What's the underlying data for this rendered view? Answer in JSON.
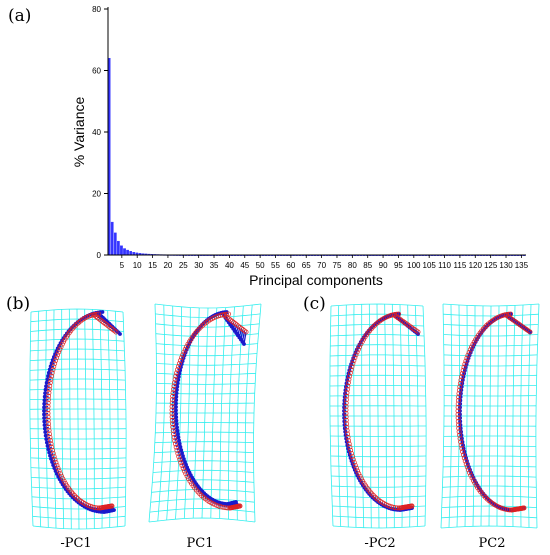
{
  "panel_labels": {
    "a": "(a)",
    "b": "(b)",
    "c": "(c)"
  },
  "captions": [
    "-PC1",
    "PC1",
    "-PC2",
    "PC2"
  ],
  "colors": {
    "bar": "#3333ff",
    "grid": "#33eeee",
    "landmark_mean": "#dd2222",
    "landmark_pc": "#1a1acc"
  },
  "chart_data": {
    "type": "bar",
    "xlabel": "Principal components",
    "ylabel": "% Variance",
    "ylim": [
      0,
      80
    ],
    "yticks": [
      0,
      20,
      40,
      60,
      80
    ],
    "xlim": [
      1,
      136
    ],
    "xticks": [
      5,
      10,
      15,
      20,
      25,
      30,
      35,
      40,
      45,
      50,
      55,
      60,
      65,
      70,
      75,
      80,
      85,
      90,
      95,
      100,
      105,
      110,
      115,
      120,
      125,
      130,
      135
    ],
    "values": [
      64.0,
      10.7,
      7.2,
      4.5,
      3.0,
      2.1,
      1.6,
      1.2,
      0.9,
      0.7,
      0.55,
      0.45,
      0.36,
      0.3,
      0.25,
      0.2,
      0.17,
      0.14,
      0.12,
      0.1,
      0.09,
      0.08,
      0.07,
      0.06,
      0.05,
      0.05,
      0.04,
      0.04,
      0.03,
      0.03,
      0.03,
      0.02,
      0.02,
      0.02,
      0.02,
      0.02,
      0.01,
      0.01,
      0.01,
      0.01,
      0.01,
      0.01,
      0.01,
      0.01,
      0.01,
      0.01,
      0.01,
      0.01,
      0.01,
      0.01,
      0.01,
      0.01,
      0.01,
      0.01,
      0.01,
      0.01,
      0.01,
      0.01,
      0.01,
      0.01,
      0.01,
      0.01,
      0.01,
      0.01,
      0.01,
      0.01,
      0.01,
      0.01,
      0.01,
      0.01,
      0.01,
      0.01,
      0.01,
      0.01,
      0.01,
      0.01,
      0.01,
      0.01,
      0.01,
      0.01,
      0.01,
      0.01,
      0.01,
      0.01,
      0.01,
      0.01,
      0.01,
      0.01,
      0.01,
      0.01,
      0.01,
      0.01,
      0.01,
      0.01,
      0.01,
      0.01,
      0.01,
      0.01,
      0.01,
      0.01,
      0.01,
      0.01,
      0.01,
      0.01,
      0.01,
      0.01,
      0.01,
      0.01,
      0.01,
      0.01,
      0.01,
      0.01,
      0.01,
      0.01,
      0.01,
      0.01,
      0.01,
      0.01,
      0.01,
      0.01,
      0.01,
      0.01,
      0.01,
      0.01,
      0.01,
      0.01,
      0.01,
      0.01,
      0.01,
      0.01,
      0.01,
      0.01,
      0.01,
      0.01,
      0.01,
      0.01
    ]
  }
}
